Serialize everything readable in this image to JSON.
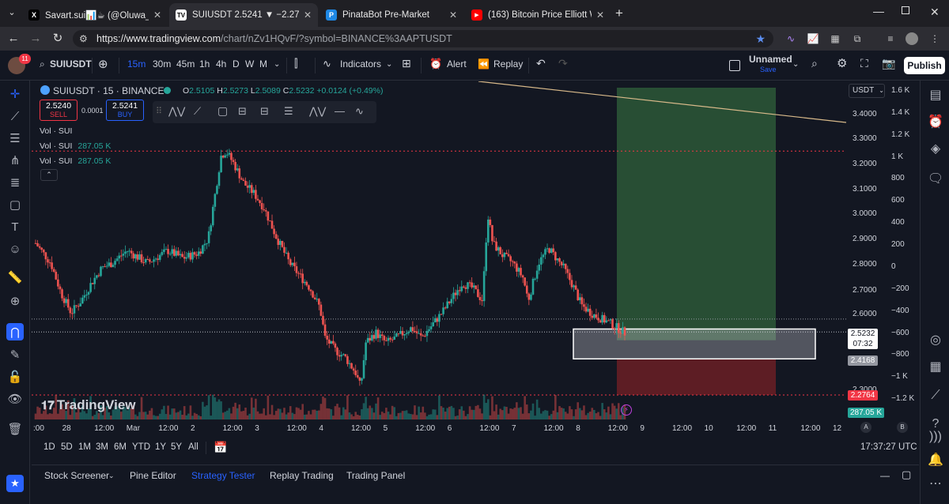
{
  "browser": {
    "tabs": [
      {
        "label": "Savart.sui📊☕ (@Oluwa_seunC",
        "icon": "x-icon"
      },
      {
        "label": "SUIUSDT 2.5241 ▼ −2.27% Unn",
        "icon": "tradingview-icon"
      },
      {
        "label": "PinataBot Pre-Market",
        "icon": "pinata-icon"
      },
      {
        "label": "(163) Bitcoin Price Elliott Wave I",
        "icon": "youtube-icon"
      }
    ],
    "new_tab": "+",
    "url_host": "https://www.tradingview.com",
    "url_path": "/chart/nZv1HQvF/?symbol=BINANCE%3AAPTUSDT"
  },
  "toolbar": {
    "avatar_badge": "11",
    "symbol": "SUIUSDT",
    "intervals": [
      "15m",
      "30m",
      "45m",
      "1h",
      "4h",
      "D",
      "W",
      "M"
    ],
    "indicators": "Indicators",
    "alert": "Alert",
    "replay": "Replay",
    "layout_name": "Unnamed",
    "layout_status": "Save",
    "publish": "Publish"
  },
  "legend": {
    "title": "SUIUSDT · 15 · BINANCE",
    "o_label": "O",
    "o": "2.5105",
    "h_label": "H",
    "h": "2.5273",
    "l_label": "L",
    "l": "2.5089",
    "c_label": "C",
    "c": "2.5232",
    "change": "+0.0124 (+0.49%)",
    "sell_price": "2.5240",
    "sell_label": "SELL",
    "spread": "0.0001",
    "buy_price": "2.5241",
    "buy_label": "BUY",
    "vol1": "Vol · SUI",
    "vol2": "Vol · SUI",
    "vol2_value": "287.05 K",
    "vol3": "Vol · SUI",
    "vol3_value": "287.05 K"
  },
  "price_axis": {
    "currency": "USDT",
    "labels": [
      "3.4000",
      "3.3000",
      "3.2000",
      "3.1000",
      "3.0000",
      "2.9000",
      "2.8000",
      "2.7000",
      "2.6000",
      "2.3000"
    ],
    "current_price": "2.5232",
    "countdown": "07:32",
    "marker_gray": "2.4168",
    "marker_red": "2.2764",
    "vol_marker": "287.05 K"
  },
  "volume_axis": {
    "labels": [
      "1.6 K",
      "1.4 K",
      "1.2 K",
      "1 K",
      "800",
      "600",
      "400",
      "200",
      "0",
      "−200",
      "−400",
      "−600",
      "−800",
      "−1 K",
      "−1.2 K"
    ]
  },
  "time_axis": {
    "labels": [
      ":00",
      "28",
      "12:00",
      "Mar",
      "12:00",
      "2",
      "12:00",
      "3",
      "12:00",
      "4",
      "12:00",
      "5",
      "12:00",
      "6",
      "12:00",
      "7",
      "12:00",
      "8",
      "12:00",
      "9",
      "12:00",
      "10",
      "12:00",
      "11",
      "12:00",
      "12"
    ]
  },
  "watermark": "TradingView",
  "ranges": [
    "1D",
    "5D",
    "1M",
    "3M",
    "6M",
    "YTD",
    "1Y",
    "5Y",
    "All"
  ],
  "clock": "17:37:27 UTC",
  "bottom_tabs": [
    "Stock Screener",
    "Pine Editor",
    "Strategy Tester",
    "Replay Trading",
    "Trading Panel"
  ],
  "colors": {
    "bg": "#131722",
    "up": "#26a69a",
    "down": "#ef5350",
    "accent": "#2962ff",
    "tp_zone": "#2e5d3a",
    "sl_zone": "#6b1f24",
    "trendline": "#d8b98a"
  },
  "chart_data": {
    "type": "candlestick",
    "symbol": "SUIUSDT",
    "interval": "15",
    "exchange": "BINANCE",
    "y_range": [
      2.23,
      3.5
    ],
    "horizontal_levels": [
      3.25,
      2.575,
      2.27
    ],
    "path_points": [
      [
        0,
        2.88
      ],
      [
        6,
        2.8
      ],
      [
        10,
        2.68
      ],
      [
        14,
        2.6
      ],
      [
        18,
        2.65
      ],
      [
        22,
        2.72
      ],
      [
        26,
        2.78
      ],
      [
        30,
        2.8
      ],
      [
        36,
        2.85
      ],
      [
        44,
        2.8
      ],
      [
        52,
        2.85
      ],
      [
        58,
        2.82
      ],
      [
        64,
        2.84
      ],
      [
        68,
        2.9
      ],
      [
        73,
        3.23
      ],
      [
        75,
        3.25
      ],
      [
        78,
        3.2
      ],
      [
        82,
        3.12
      ],
      [
        86,
        3.08
      ],
      [
        90,
        3.02
      ],
      [
        95,
        2.9
      ],
      [
        100,
        2.8
      ],
      [
        104,
        2.75
      ],
      [
        108,
        2.7
      ],
      [
        112,
        2.62
      ],
      [
        114,
        2.5
      ],
      [
        118,
        2.45
      ],
      [
        122,
        2.42
      ],
      [
        126,
        2.36
      ],
      [
        128,
        2.3
      ],
      [
        130,
        2.48
      ],
      [
        134,
        2.52
      ],
      [
        138,
        2.48
      ],
      [
        142,
        2.5
      ],
      [
        148,
        2.54
      ],
      [
        152,
        2.5
      ],
      [
        156,
        2.55
      ],
      [
        160,
        2.6
      ],
      [
        164,
        2.66
      ],
      [
        168,
        2.72
      ],
      [
        172,
        2.7
      ],
      [
        176,
        2.65
      ],
      [
        178,
        3.0
      ],
      [
        180,
        2.88
      ],
      [
        184,
        2.83
      ],
      [
        188,
        2.8
      ],
      [
        192,
        2.74
      ],
      [
        194,
        2.65
      ],
      [
        198,
        2.8
      ],
      [
        202,
        2.86
      ],
      [
        205,
        2.82
      ],
      [
        208,
        2.78
      ],
      [
        212,
        2.7
      ],
      [
        215,
        2.63
      ],
      [
        220,
        2.59
      ],
      [
        226,
        2.56
      ],
      [
        232,
        2.52
      ]
    ]
  }
}
